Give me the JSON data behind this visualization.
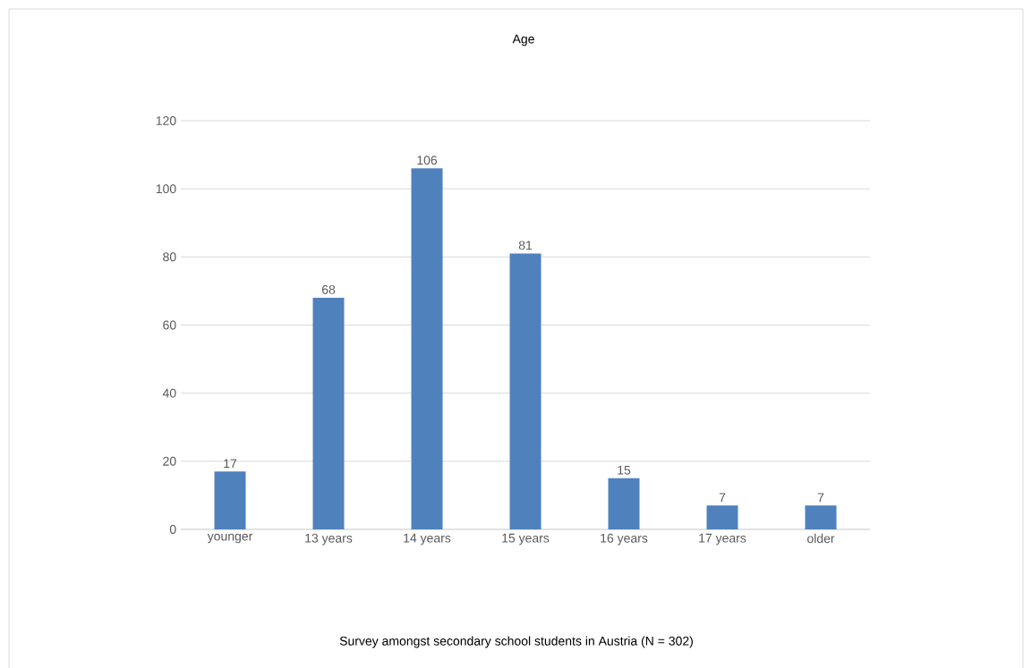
{
  "chart_data": {
    "type": "bar",
    "title": "Age",
    "categories": [
      "younger",
      "13 years",
      "14 years",
      "15 years",
      "16 years",
      "17 years",
      "older"
    ],
    "values": [
      17,
      68,
      106,
      81,
      15,
      7,
      7
    ],
    "color": "#4f81bd",
    "ylim": [
      0,
      120
    ],
    "yticks": [
      0,
      20,
      40,
      60,
      80,
      100,
      120
    ],
    "grid": "y",
    "data_labels": true,
    "annotations": [
      "Survey amongst secondary school students in Austria (N = 302)"
    ]
  }
}
